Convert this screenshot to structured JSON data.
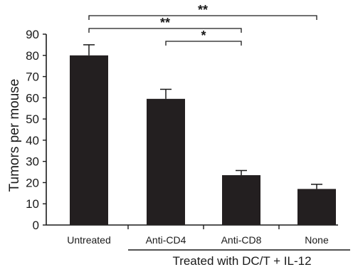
{
  "chart_data": {
    "type": "bar",
    "categories": [
      "Untreated",
      "Anti-CD4",
      "Anti-CD8",
      "None"
    ],
    "values": [
      80,
      59.5,
      23.5,
      17
    ],
    "errors": [
      5,
      4.5,
      2.2,
      2.2
    ],
    "ylabel": "Tumors per mouse",
    "ylim": [
      0,
      90
    ],
    "yticks": [
      0,
      10,
      20,
      30,
      40,
      50,
      60,
      70,
      80,
      90
    ],
    "group_label": "Treated with DC/T + IL-12",
    "group_members": [
      "Anti-CD4",
      "Anti-CD8",
      "None"
    ],
    "bar_color": "#231f20",
    "significance": [
      {
        "from": "Untreated",
        "to": "None",
        "label": "**"
      },
      {
        "from": "Untreated",
        "to": "Anti-CD8",
        "label": "**"
      },
      {
        "from": "Anti-CD4",
        "to": "Anti-CD8",
        "label": "*"
      }
    ],
    "grid": false,
    "legend": "none"
  }
}
